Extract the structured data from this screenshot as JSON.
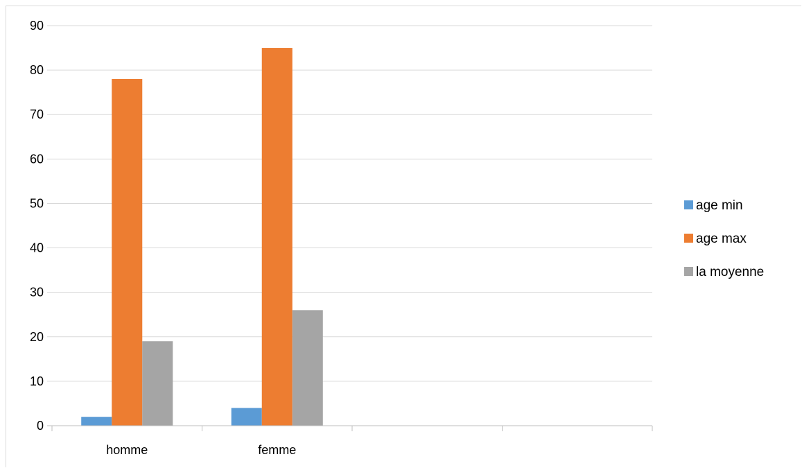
{
  "chart_data": {
    "type": "bar",
    "title": "",
    "xlabel": "",
    "ylabel": "",
    "categories": [
      "homme",
      "femme",
      "",
      ""
    ],
    "series": [
      {
        "name": "age min",
        "color": "#5b9bd5",
        "values": [
          2,
          4,
          null,
          null
        ]
      },
      {
        "name": "age max",
        "color": "#ed7d31",
        "values": [
          78,
          85,
          null,
          null
        ]
      },
      {
        "name": "la moyenne",
        "color": "#a5a5a5",
        "values": [
          19,
          26,
          null,
          null
        ]
      }
    ],
    "ylim": [
      0,
      90
    ],
    "yticks": [
      0,
      10,
      20,
      30,
      40,
      50,
      60,
      70,
      80,
      90
    ],
    "grid": true,
    "legend_position": "right"
  }
}
